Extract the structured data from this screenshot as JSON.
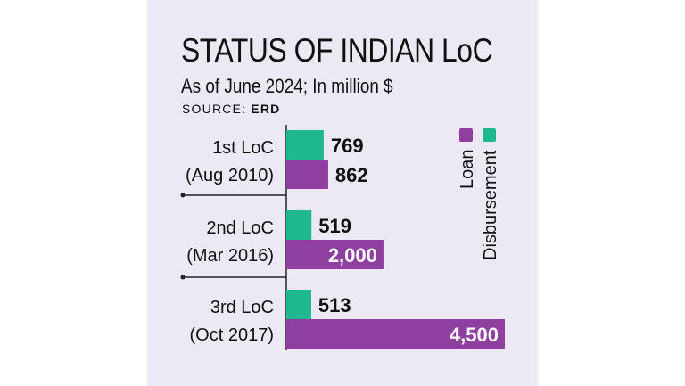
{
  "header": {
    "title": "STATUS OF INDIAN LoC",
    "subtitle": "As of June 2024; In million $",
    "source_label": "SOURCE:",
    "source_value": "ERD"
  },
  "colors": {
    "panel_bg": "#ece8f4",
    "loan": "#8e3fa0",
    "disbursement": "#1fb88c"
  },
  "chart_data": {
    "type": "bar",
    "orientation": "horizontal",
    "categories": [
      [
        "1st LoC",
        "(Aug 2010)"
      ],
      [
        "2nd LoC",
        "(Mar 2016)"
      ],
      [
        "3rd LoC",
        "(Oct 2017)"
      ]
    ],
    "series": [
      {
        "name": "Disbursement",
        "values": [
          769,
          519,
          513
        ],
        "labels": [
          "769",
          "519",
          "513"
        ],
        "color": "#1fb88c"
      },
      {
        "name": "Loan",
        "values": [
          862,
          2000,
          4500
        ],
        "labels": [
          "862",
          "2,000",
          "4,500"
        ],
        "color": "#8e3fa0"
      }
    ],
    "title": "STATUS OF INDIAN LoC",
    "subtitle": "As of June 2024; In million $",
    "legend_position": "top-right",
    "grid": false
  }
}
